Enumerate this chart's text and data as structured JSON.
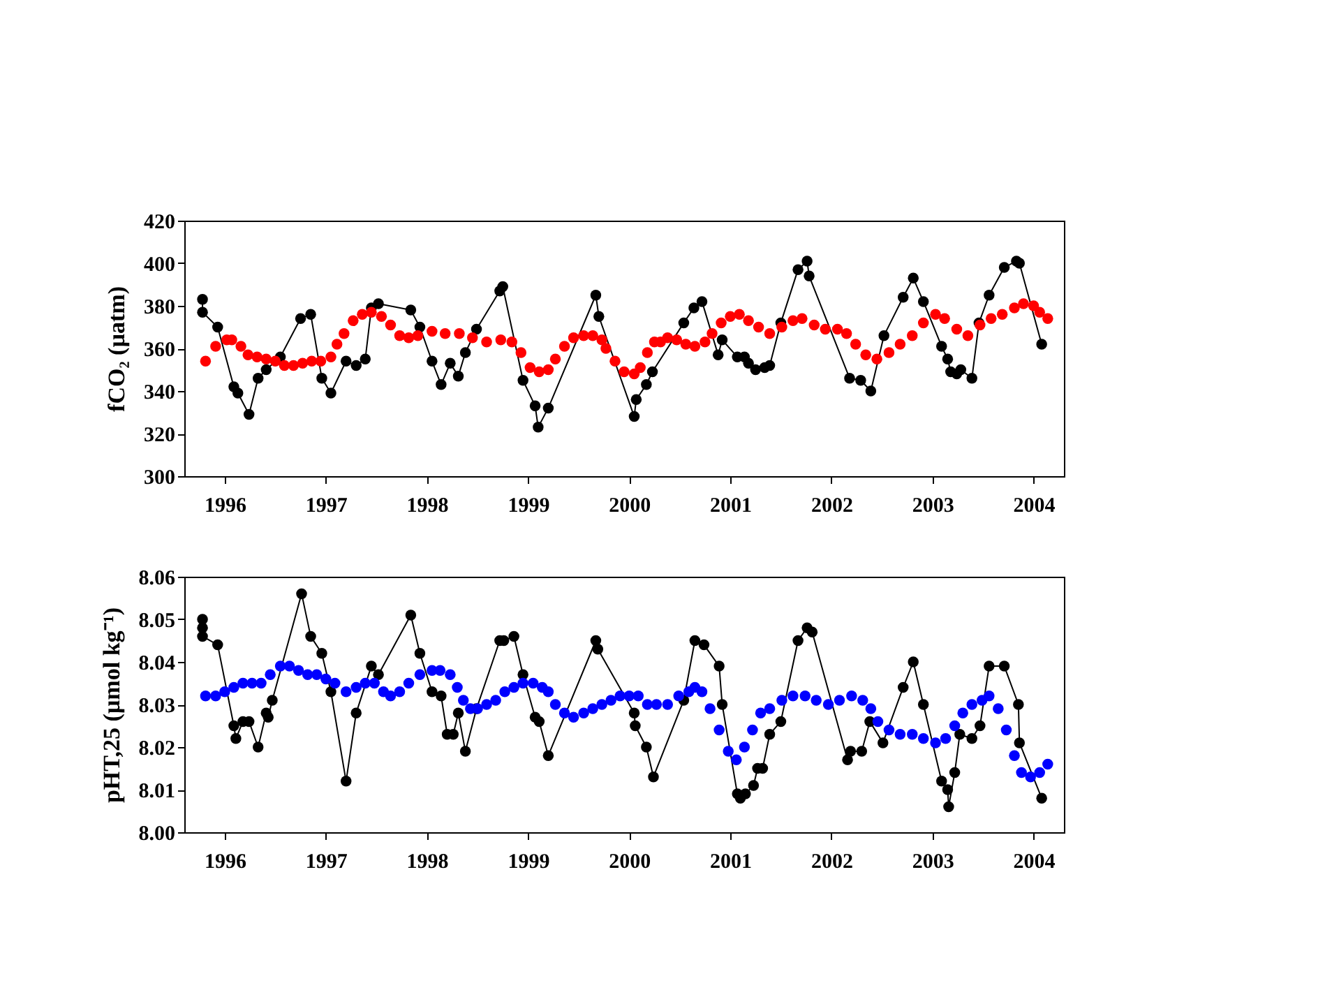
{
  "chart_data": [
    {
      "type": "line",
      "ylabel": "fCO₂ (µatm)",
      "xlim": [
        1995.6,
        2004.3
      ],
      "xticks": [
        1996,
        1997,
        1998,
        1999,
        2000,
        2001,
        2002,
        2003,
        2004
      ],
      "ylim": [
        300,
        420
      ],
      "yticks": [
        300,
        320,
        340,
        360,
        380,
        400,
        420
      ],
      "grid": false,
      "series": [
        {
          "type": "line",
          "marker": "circle",
          "line_style": "solid",
          "color": "#000000",
          "x": [
            1995.78,
            1995.78,
            1995.93,
            1996.09,
            1996.13,
            1996.24,
            1996.33,
            1996.41,
            1996.55,
            1996.75,
            1996.85,
            1996.96,
            1997.05,
            1997.2,
            1997.3,
            1997.39,
            1997.45,
            1997.52,
            1997.84,
            1997.93,
            1998.05,
            1998.14,
            1998.23,
            1998.31,
            1998.38,
            1998.49,
            1998.72,
            1998.75,
            1998.95,
            1999.07,
            1999.1,
            1999.2,
            1999.67,
            1999.7,
            2000.05,
            2000.07,
            2000.17,
            2000.23,
            2000.54,
            2000.64,
            2000.72,
            2000.88,
            2000.92,
            2001.07,
            2001.14,
            2001.18,
            2001.25,
            2001.34,
            2001.39,
            2001.5,
            2001.67,
            2001.76,
            2001.78,
            2002.18,
            2002.29,
            2002.39,
            2002.52,
            2002.71,
            2002.81,
            2002.91,
            2003.09,
            2003.15,
            2003.18,
            2003.24,
            2003.28,
            2003.39,
            2003.46,
            2003.56,
            2003.71,
            2003.83,
            2003.86,
            2004.08
          ],
          "values": [
            383,
            377,
            370,
            342,
            339,
            329,
            346,
            350,
            356,
            374,
            376,
            346,
            339,
            354,
            352,
            355,
            379,
            381,
            378,
            370,
            354,
            343,
            353,
            347,
            358,
            369,
            387,
            389,
            345,
            333,
            323,
            332,
            385,
            375,
            328,
            336,
            343,
            349,
            372,
            379,
            382,
            357,
            364,
            356,
            356,
            353,
            350,
            351,
            352,
            372,
            397,
            401,
            394,
            346,
            345,
            340,
            366,
            384,
            393,
            382,
            361,
            355,
            349,
            348,
            350,
            346,
            372,
            385,
            398,
            401,
            400,
            362
          ]
        },
        {
          "type": "scatter",
          "marker": "circle",
          "color": "#ff0000",
          "x": [
            1995.81,
            1995.91,
            1996.02,
            1996.07,
            1996.16,
            1996.23,
            1996.32,
            1996.41,
            1996.5,
            1996.59,
            1996.68,
            1996.77,
            1996.86,
            1996.95,
            1997.05,
            1997.11,
            1997.18,
            1997.27,
            1997.36,
            1997.45,
            1997.55,
            1997.64,
            1997.73,
            1997.82,
            1997.91,
            1998.05,
            1998.18,
            1998.32,
            1998.45,
            1998.59,
            1998.73,
            1998.84,
            1998.93,
            1999.02,
            1999.11,
            1999.2,
            1999.27,
            1999.36,
            1999.45,
            1999.55,
            1999.64,
            1999.73,
            1999.77,
            1999.86,
            1999.95,
            2000.05,
            2000.11,
            2000.18,
            2000.25,
            2000.31,
            2000.38,
            2000.47,
            2000.56,
            2000.65,
            2000.75,
            2000.82,
            2000.91,
            2001.0,
            2001.09,
            2001.18,
            2001.28,
            2001.39,
            2001.51,
            2001.62,
            2001.71,
            2001.83,
            2001.94,
            2002.06,
            2002.15,
            2002.24,
            2002.34,
            2002.45,
            2002.57,
            2002.68,
            2002.8,
            2002.91,
            2003.03,
            2003.12,
            2003.24,
            2003.35,
            2003.47,
            2003.58,
            2003.69,
            2003.81,
            2003.9,
            2004.0,
            2004.06,
            2004.14
          ],
          "values": [
            354,
            361,
            364,
            364,
            361,
            357,
            356,
            355,
            354,
            352,
            352,
            353,
            354,
            354,
            356,
            362,
            367,
            373,
            376,
            377,
            375,
            371,
            366,
            365,
            366,
            368,
            367,
            367,
            365,
            363,
            364,
            363,
            358,
            351,
            349,
            350,
            355,
            361,
            365,
            366,
            366,
            364,
            360,
            354,
            349,
            348,
            351,
            358,
            363,
            363,
            365,
            364,
            362,
            361,
            363,
            367,
            372,
            375,
            376,
            373,
            370,
            367,
            370,
            373,
            374,
            371,
            369,
            369,
            367,
            362,
            357,
            355,
            358,
            362,
            366,
            372,
            376,
            374,
            369,
            366,
            371,
            374,
            376,
            379,
            381,
            380,
            377,
            374
          ]
        }
      ]
    },
    {
      "type": "line",
      "ylabel": "pHT,25 (µmol kg⁻¹)",
      "xlim": [
        1995.6,
        2004.3
      ],
      "xticks": [
        1996,
        1997,
        1998,
        1999,
        2000,
        2001,
        2002,
        2003,
        2004
      ],
      "ylim": [
        8.0,
        8.06
      ],
      "yticks": [
        {
          "value": 8.0,
          "label": "8.00"
        },
        {
          "value": 8.01,
          "label": "8.01"
        },
        {
          "value": 8.02,
          "label": "8.02"
        },
        {
          "value": 8.03,
          "label": "8.03"
        },
        {
          "value": 8.04,
          "label": "8.04"
        },
        {
          "value": 8.05,
          "label": "8.05"
        },
        {
          "value": 8.06,
          "label": "8.06"
        }
      ],
      "grid": false,
      "series": [
        {
          "type": "line",
          "marker": "circle",
          "line_style": "solid",
          "color": "#000000",
          "x": [
            1995.78,
            1995.78,
            1995.78,
            1995.93,
            1996.09,
            1996.11,
            1996.18,
            1996.24,
            1996.33,
            1996.41,
            1996.43,
            1996.47,
            1996.76,
            1996.85,
            1996.96,
            1997.05,
            1997.2,
            1997.3,
            1997.45,
            1997.52,
            1997.84,
            1997.93,
            1998.05,
            1998.14,
            1998.2,
            1998.26,
            1998.31,
            1998.38,
            1998.49,
            1998.72,
            1998.76,
            1998.86,
            1998.95,
            1999.07,
            1999.11,
            1999.2,
            1999.67,
            1999.69,
            2000.05,
            2000.06,
            2000.17,
            2000.24,
            2000.54,
            2000.65,
            2000.74,
            2000.89,
            2000.92,
            2001.07,
            2001.1,
            2001.15,
            2001.23,
            2001.27,
            2001.32,
            2001.39,
            2001.5,
            2001.67,
            2001.76,
            2001.81,
            2002.16,
            2002.19,
            2002.3,
            2002.38,
            2002.51,
            2002.71,
            2002.81,
            2002.91,
            2003.09,
            2003.15,
            2003.16,
            2003.22,
            2003.27,
            2003.39,
            2003.47,
            2003.56,
            2003.71,
            2003.85,
            2003.86,
            2004.08
          ],
          "values": [
            8.05,
            8.048,
            8.046,
            8.044,
            8.025,
            8.022,
            8.026,
            8.026,
            8.02,
            8.028,
            8.027,
            8.031,
            8.056,
            8.046,
            8.042,
            8.033,
            8.012,
            8.028,
            8.039,
            8.037,
            8.051,
            8.042,
            8.033,
            8.032,
            8.023,
            8.023,
            8.028,
            8.019,
            8.029,
            8.045,
            8.045,
            8.046,
            8.037,
            8.027,
            8.026,
            8.018,
            8.045,
            8.043,
            8.028,
            8.025,
            8.02,
            8.013,
            8.031,
            8.045,
            8.044,
            8.039,
            8.03,
            8.009,
            8.008,
            8.009,
            8.011,
            8.015,
            8.015,
            8.023,
            8.026,
            8.045,
            8.048,
            8.047,
            8.017,
            8.019,
            8.019,
            8.026,
            8.021,
            8.034,
            8.04,
            8.03,
            8.012,
            8.01,
            8.006,
            8.014,
            8.023,
            8.022,
            8.025,
            8.039,
            8.039,
            8.03,
            8.021,
            8.008
          ]
        },
        {
          "type": "scatter",
          "marker": "circle",
          "color": "#0000ff",
          "x": [
            1995.81,
            1995.91,
            1996.0,
            1996.09,
            1996.18,
            1996.27,
            1996.36,
            1996.45,
            1996.55,
            1996.64,
            1996.73,
            1996.82,
            1996.91,
            1997.0,
            1997.09,
            1997.2,
            1997.3,
            1997.39,
            1997.48,
            1997.57,
            1997.64,
            1997.73,
            1997.82,
            1997.93,
            1998.05,
            1998.13,
            1998.23,
            1998.3,
            1998.36,
            1998.43,
            1998.5,
            1998.59,
            1998.68,
            1998.77,
            1998.86,
            1998.95,
            1999.05,
            1999.14,
            1999.2,
            1999.27,
            1999.36,
            1999.45,
            1999.55,
            1999.64,
            1999.73,
            1999.82,
            1999.91,
            2000.0,
            2000.09,
            2000.18,
            2000.27,
            2000.38,
            2000.49,
            2000.59,
            2000.65,
            2000.72,
            2000.8,
            2000.89,
            2000.98,
            2001.06,
            2001.14,
            2001.22,
            2001.3,
            2001.39,
            2001.51,
            2001.62,
            2001.74,
            2001.85,
            2001.97,
            2002.08,
            2002.2,
            2002.31,
            2002.39,
            2002.46,
            2002.57,
            2002.68,
            2002.8,
            2002.91,
            2003.03,
            2003.13,
            2003.22,
            2003.3,
            2003.39,
            2003.49,
            2003.56,
            2003.65,
            2003.73,
            2003.81,
            2003.88,
            2003.97,
            2004.06,
            2004.14
          ],
          "values": [
            8.032,
            8.032,
            8.033,
            8.034,
            8.035,
            8.035,
            8.035,
            8.037,
            8.039,
            8.039,
            8.038,
            8.037,
            8.037,
            8.036,
            8.035,
            8.033,
            8.034,
            8.035,
            8.035,
            8.033,
            8.032,
            8.033,
            8.035,
            8.037,
            8.038,
            8.038,
            8.037,
            8.034,
            8.031,
            8.029,
            8.029,
            8.03,
            8.031,
            8.033,
            8.034,
            8.035,
            8.035,
            8.034,
            8.033,
            8.03,
            8.028,
            8.027,
            8.028,
            8.029,
            8.03,
            8.031,
            8.032,
            8.032,
            8.032,
            8.03,
            8.03,
            8.03,
            8.032,
            8.033,
            8.034,
            8.033,
            8.029,
            8.024,
            8.019,
            8.017,
            8.02,
            8.024,
            8.028,
            8.029,
            8.031,
            8.032,
            8.032,
            8.031,
            8.03,
            8.031,
            8.032,
            8.031,
            8.029,
            8.026,
            8.024,
            8.023,
            8.023,
            8.022,
            8.021,
            8.022,
            8.025,
            8.028,
            8.03,
            8.031,
            8.032,
            8.029,
            8.024,
            8.018,
            8.014,
            8.013,
            8.014,
            8.016
          ]
        }
      ]
    }
  ]
}
